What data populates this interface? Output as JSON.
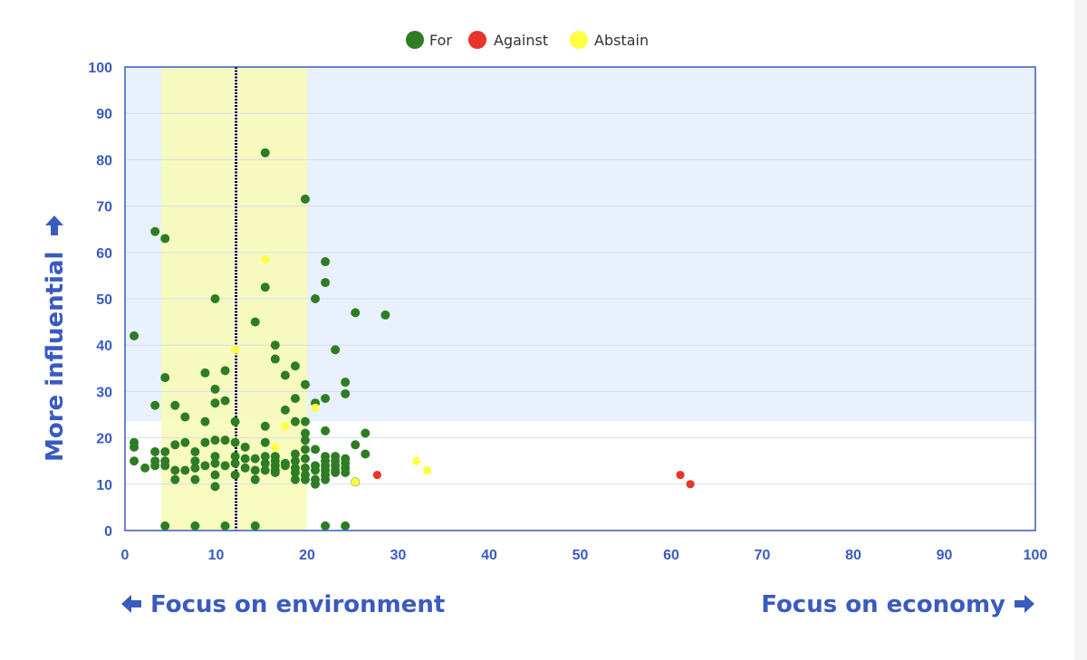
{
  "chart_data": {
    "type": "scatter",
    "title": "",
    "xlim": [
      0,
      100
    ],
    "ylim": [
      0,
      100
    ],
    "xticks": [
      "0",
      "10",
      "20",
      "30",
      "40",
      "50",
      "60",
      "70",
      "80",
      "90",
      "100"
    ],
    "yticks": [
      "0",
      "10",
      "20",
      "30",
      "40",
      "50",
      "60",
      "70",
      "80",
      "90",
      "100"
    ],
    "xlabel_left": "Focus on environment",
    "xlabel_right": "Focus on economy",
    "ylabel": "More influential",
    "grid": "horizontal",
    "legend_position": "top-center",
    "colors": {
      "For": "#2e7d22",
      "Against": "#e8352a",
      "Abstain": "#ffff44",
      "band": "#f7fbb8",
      "upper_region": "#e8f1fd",
      "median_line": "#000000",
      "axis": "#3a5bbf"
    },
    "highlight_band_x": [
      4,
      20
    ],
    "upper_region_y": [
      23.5,
      100
    ],
    "median_x": 12.2,
    "series": [
      {
        "name": "For",
        "points": [
          [
            1,
            42
          ],
          [
            1,
            19
          ],
          [
            1,
            18
          ],
          [
            1,
            15
          ],
          [
            2.2,
            13.5
          ],
          [
            3.3,
            64.5
          ],
          [
            3.3,
            27
          ],
          [
            3.3,
            17
          ],
          [
            3.3,
            15
          ],
          [
            3.3,
            14
          ],
          [
            4.4,
            63
          ],
          [
            4.4,
            33
          ],
          [
            4.4,
            17
          ],
          [
            4.4,
            15
          ],
          [
            4.4,
            14
          ],
          [
            4.4,
            1
          ],
          [
            5.5,
            27
          ],
          [
            5.5,
            18.5
          ],
          [
            5.5,
            13
          ],
          [
            5.5,
            11
          ],
          [
            6.6,
            24.5
          ],
          [
            6.6,
            19
          ],
          [
            6.6,
            13
          ],
          [
            7.7,
            17
          ],
          [
            7.7,
            15
          ],
          [
            7.7,
            13.5
          ],
          [
            7.7,
            11
          ],
          [
            7.7,
            1
          ],
          [
            8.8,
            34
          ],
          [
            8.8,
            23.5
          ],
          [
            8.8,
            19
          ],
          [
            8.8,
            14
          ],
          [
            9.9,
            50
          ],
          [
            9.9,
            30.5
          ],
          [
            9.9,
            27.5
          ],
          [
            9.9,
            19.5
          ],
          [
            9.9,
            16
          ],
          [
            9.9,
            14.5
          ],
          [
            9.9,
            12
          ],
          [
            9.9,
            9.5
          ],
          [
            11,
            34.5
          ],
          [
            11,
            28
          ],
          [
            11,
            19.5
          ],
          [
            11,
            14
          ],
          [
            11,
            1
          ],
          [
            12.1,
            23.5
          ],
          [
            12.1,
            19
          ],
          [
            12.1,
            16
          ],
          [
            12.1,
            14.5
          ],
          [
            12.1,
            12
          ],
          [
            13.2,
            18
          ],
          [
            13.2,
            15.5
          ],
          [
            13.2,
            13.5
          ],
          [
            14.3,
            45
          ],
          [
            14.3,
            15.5
          ],
          [
            14.3,
            13
          ],
          [
            14.3,
            11
          ],
          [
            14.3,
            1
          ],
          [
            15.4,
            81.5
          ],
          [
            15.4,
            52.5
          ],
          [
            15.4,
            22.5
          ],
          [
            15.4,
            19
          ],
          [
            15.4,
            16
          ],
          [
            15.4,
            14.5
          ],
          [
            15.4,
            13
          ],
          [
            16.5,
            40
          ],
          [
            16.5,
            37
          ],
          [
            16.5,
            16
          ],
          [
            16.5,
            15
          ],
          [
            16.5,
            14
          ],
          [
            16.5,
            13
          ],
          [
            16.5,
            12.5
          ],
          [
            17.6,
            33.5
          ],
          [
            17.6,
            26
          ],
          [
            17.6,
            14.5
          ],
          [
            17.6,
            14
          ],
          [
            18.7,
            35.5
          ],
          [
            18.7,
            28.5
          ],
          [
            18.7,
            23.5
          ],
          [
            18.7,
            16.5
          ],
          [
            18.7,
            15
          ],
          [
            18.7,
            13.5
          ],
          [
            18.7,
            12.5
          ],
          [
            18.7,
            11
          ],
          [
            19.8,
            71.5
          ],
          [
            19.8,
            31.5
          ],
          [
            19.8,
            23.5
          ],
          [
            19.8,
            21
          ],
          [
            19.8,
            19.5
          ],
          [
            19.8,
            17.5
          ],
          [
            19.8,
            15.5
          ],
          [
            19.8,
            13.5
          ],
          [
            19.8,
            12
          ],
          [
            19.8,
            11
          ],
          [
            20.9,
            50
          ],
          [
            20.9,
            27.5
          ],
          [
            20.9,
            17.5
          ],
          [
            20.9,
            14
          ],
          [
            20.9,
            13
          ],
          [
            20.9,
            11
          ],
          [
            20.9,
            10
          ],
          [
            22,
            58
          ],
          [
            22,
            53.5
          ],
          [
            22,
            28.5
          ],
          [
            22,
            21.5
          ],
          [
            22,
            16
          ],
          [
            22,
            15
          ],
          [
            22,
            14
          ],
          [
            22,
            13
          ],
          [
            22,
            12
          ],
          [
            22,
            11
          ],
          [
            22,
            1
          ],
          [
            23.1,
            39
          ],
          [
            23.1,
            16
          ],
          [
            23.1,
            15
          ],
          [
            23.1,
            14
          ],
          [
            23.1,
            13
          ],
          [
            23.1,
            12.5
          ],
          [
            24.2,
            32
          ],
          [
            24.2,
            29.5
          ],
          [
            24.2,
            15.5
          ],
          [
            24.2,
            14.5
          ],
          [
            24.2,
            13.5
          ],
          [
            24.2,
            12.5
          ],
          [
            24.2,
            1
          ],
          [
            25.3,
            47
          ],
          [
            25.3,
            18.5
          ],
          [
            25.3,
            10.5
          ],
          [
            26.4,
            21
          ],
          [
            26.4,
            16.5
          ],
          [
            28.6,
            46.5
          ]
        ]
      },
      {
        "name": "Against",
        "points": [
          [
            27.7,
            12
          ],
          [
            61,
            12
          ],
          [
            62.1,
            10
          ]
        ]
      },
      {
        "name": "Abstain",
        "points": [
          [
            15.4,
            58.5
          ],
          [
            12.1,
            39
          ],
          [
            17.6,
            22.5
          ],
          [
            16.5,
            18
          ],
          [
            20.9,
            26.5
          ],
          [
            25.3,
            10.5
          ],
          [
            32,
            15
          ],
          [
            33.2,
            13
          ]
        ]
      }
    ]
  }
}
